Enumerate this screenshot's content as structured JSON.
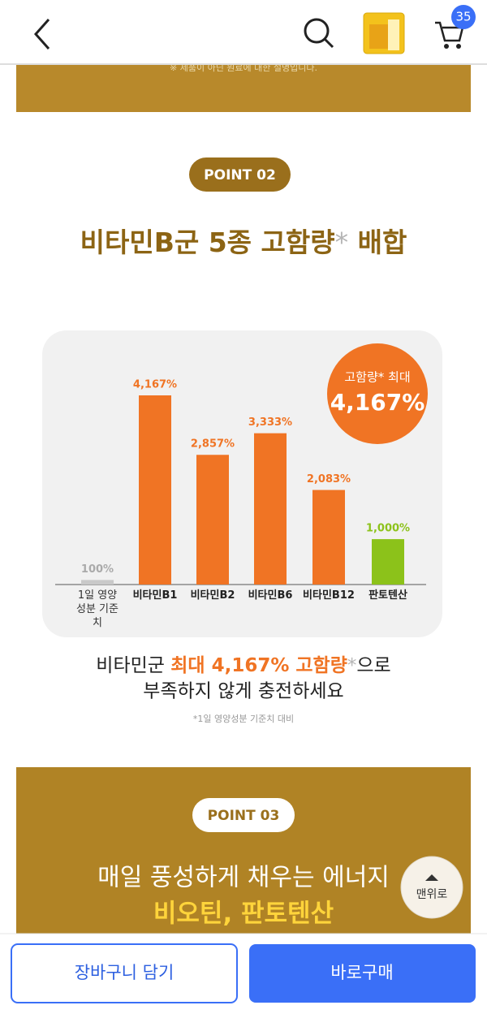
{
  "header": {
    "cart_count": "35"
  },
  "notice": "※ 제품이 아닌 원료에 대한 설명입니다.",
  "point02": {
    "badge": "POINT 02",
    "title": {
      "main": "비타민B군 5종 고함량",
      "asterisk": "*",
      "end": " 배합"
    }
  },
  "highlight": {
    "label": "고함량* 최대",
    "value": "4,167%"
  },
  "chart_data": {
    "type": "bar",
    "categories": [
      "1일 영양 성분 기준치",
      "비타민B1",
      "비타민B2",
      "비타민B6",
      "비타민B12",
      "판토텐산"
    ],
    "values": [
      100,
      4167,
      2857,
      3333,
      2083,
      1000
    ],
    "value_labels": [
      "100%",
      "4,167%",
      "2,857%",
      "3,333%",
      "2,083%",
      "1,000%"
    ],
    "colors": [
      "#c9c9c9",
      "#f07424",
      "#f07424",
      "#f07424",
      "#f07424",
      "#8cc21a"
    ]
  },
  "caption": {
    "line1": [
      "비타민군 ",
      "최대 4,167% 고함량",
      "*",
      "으로"
    ],
    "line2": "부족하지 않게 충전하세요",
    "footnote": "*1일 영양성분 기준치 대비"
  },
  "point03": {
    "badge": "POINT 03",
    "line1": "매일 풍성하게 채우는 에너지",
    "line2": "비오틴, 판토텐산"
  },
  "scroll_top": "맨위로",
  "buttons": {
    "cart": "장바구니 담기",
    "buy": "바로구매"
  }
}
